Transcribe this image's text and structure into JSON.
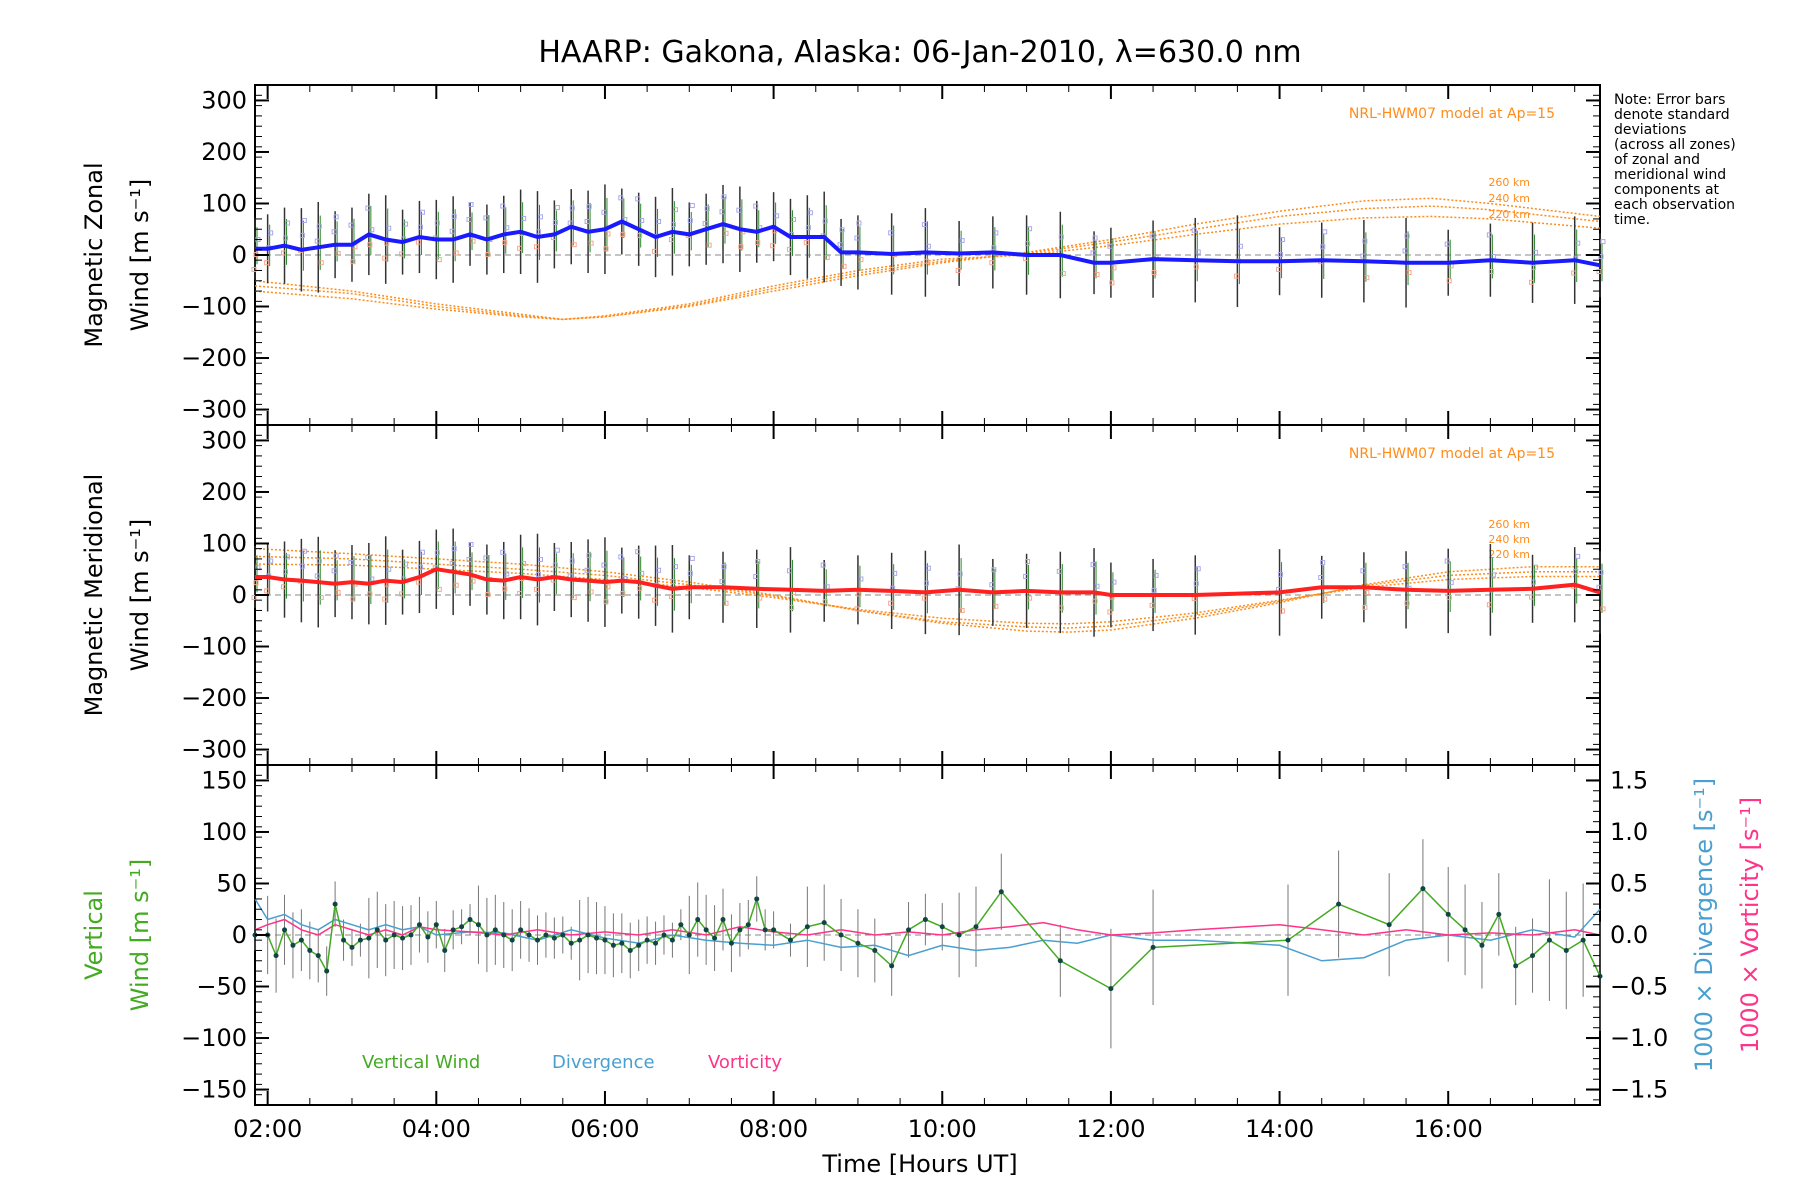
{
  "title": "HAARP: Gakona,  Alaska: 06-Jan-2010, λ=630.0 nm",
  "note": [
    "Note: Error bars",
    "denote standard",
    "deviations",
    "(across all zones)",
    "of zonal and",
    "meridional wind",
    "components at",
    "each observation",
    "time."
  ],
  "xlabel": "Time [Hours UT]",
  "x_ticks": [
    "02:00",
    "04:00",
    "06:00",
    "08:00",
    "10:00",
    "12:00",
    "14:00",
    "16:00"
  ],
  "panel_zonal": {
    "ylabel_top": "Magnetic Zonal",
    "ylabel_bottom": "Wind [m s⁻¹]",
    "y_ticks": [
      "300",
      "200",
      "100",
      "0",
      "−100",
      "−200",
      "−300"
    ],
    "model_note": "NRL-HWM07 model at Ap=15",
    "model_alt_labels": [
      "260 km",
      "240 km",
      "220 km"
    ]
  },
  "panel_meridional": {
    "ylabel_top": "Magnetic Meridional",
    "ylabel_bottom": "Wind [m s⁻¹]",
    "y_ticks": [
      "300",
      "200",
      "100",
      "0",
      "−100",
      "−200",
      "−300"
    ],
    "model_note": "NRL-HWM07 model at Ap=15",
    "model_alt_labels": [
      "260 km",
      "240 km",
      "220 km"
    ]
  },
  "panel_vertical": {
    "ylabel_top": "Vertical",
    "ylabel_bottom": "Wind [m s⁻¹]",
    "y_ticks": [
      "150",
      "100",
      "50",
      "0",
      "−50",
      "−100",
      "−150"
    ],
    "y2_ticks": [
      "1.5",
      "1.0",
      "0.5",
      "0.0",
      "−0.5",
      "−1.0",
      "−1.5"
    ],
    "y2_label_div": "1000 × Divergence [s⁻¹]",
    "y2_label_vort": "1000 × Vorticity [s⁻¹]",
    "legend": [
      "Vertical Wind",
      "Divergence",
      "Vorticity"
    ]
  },
  "colors": {
    "zonal": "#1a1aff",
    "meridional": "#ff2020",
    "model": "#ff8c1a",
    "vertical": "#44aa22",
    "divergence": "#4a9fd0",
    "vorticity": "#ff3388",
    "scatter": "#a9a9e8",
    "scatter_low": "#f5a78f"
  },
  "chart_data": [
    {
      "type": "line",
      "title": "Magnetic Zonal Wind",
      "ylim": [
        -330,
        330
      ],
      "xlim": [
        1.85,
        17.8
      ],
      "series": [
        {
          "x": [
            1.85,
            2.0,
            2.2,
            2.4,
            2.6,
            2.8,
            3.0,
            3.2,
            3.4,
            3.6,
            3.8,
            4.0,
            4.2,
            4.4,
            4.6,
            4.8,
            5.0,
            5.2,
            5.4,
            5.6,
            5.8,
            6.0,
            6.2,
            6.4,
            6.6,
            6.8,
            7.0,
            7.2,
            7.4,
            7.6,
            7.8,
            8.0,
            8.2,
            8.4,
            8.6,
            8.8,
            9.0,
            9.4,
            9.8,
            10.2,
            10.6,
            11.0,
            11.4,
            11.8,
            12.0,
            12.5,
            13.0,
            13.5,
            14.0,
            14.5,
            15.0,
            15.5,
            16.0,
            16.5,
            17.0,
            17.5,
            17.8
          ],
          "y": [
            12,
            12,
            18,
            10,
            15,
            20,
            20,
            40,
            30,
            25,
            35,
            30,
            30,
            40,
            30,
            40,
            45,
            35,
            40,
            55,
            45,
            50,
            65,
            50,
            35,
            45,
            40,
            50,
            60,
            50,
            45,
            55,
            35,
            35,
            35,
            5,
            5,
            2,
            5,
            3,
            5,
            0,
            0,
            -15,
            -15,
            -8,
            -10,
            -12,
            -12,
            -10,
            -12,
            -15,
            -15,
            -10,
            -15,
            -10,
            -20
          ],
          "color_key": "zonal"
        },
        {
          "x": [
            1.85,
            3.0,
            4.0,
            5.0,
            5.5,
            6.0,
            7.0,
            8.0,
            9.0,
            10.0,
            11.0,
            12.0,
            13.0,
            14.0,
            15.0,
            15.8,
            16.5,
            17.8
          ],
          "y": [
            -50,
            -70,
            -95,
            -115,
            -125,
            -120,
            -100,
            -70,
            -40,
            -15,
            5,
            30,
            60,
            85,
            105,
            110,
            100,
            75
          ],
          "name": "260 km",
          "color_key": "model"
        },
        {
          "x": [
            1.85,
            3.0,
            4.0,
            5.0,
            5.5,
            6.0,
            7.0,
            8.0,
            9.0,
            10.0,
            11.0,
            12.0,
            13.0,
            14.0,
            15.0,
            15.8,
            16.5,
            17.8
          ],
          "y": [
            -60,
            -75,
            -100,
            -118,
            -125,
            -120,
            -98,
            -65,
            -35,
            -12,
            3,
            25,
            50,
            75,
            90,
            95,
            88,
            65
          ],
          "name": "240 km",
          "color_key": "model"
        },
        {
          "x": [
            1.85,
            3.0,
            4.0,
            5.0,
            5.5,
            6.0,
            7.0,
            8.0,
            9.0,
            10.0,
            11.0,
            12.0,
            13.0,
            14.0,
            15.0,
            15.8,
            16.5,
            17.8
          ],
          "y": [
            -70,
            -85,
            -105,
            -120,
            -125,
            -118,
            -95,
            -60,
            -30,
            -8,
            0,
            18,
            40,
            60,
            72,
            75,
            70,
            52
          ],
          "name": "220 km",
          "color_key": "model"
        }
      ]
    },
    {
      "type": "line",
      "title": "Magnetic Meridional Wind",
      "ylim": [
        -330,
        330
      ],
      "xlim": [
        1.85,
        17.8
      ],
      "series": [
        {
          "x": [
            1.85,
            2.0,
            2.2,
            2.4,
            2.6,
            2.8,
            3.0,
            3.2,
            3.4,
            3.6,
            3.8,
            4.0,
            4.2,
            4.4,
            4.6,
            4.8,
            5.0,
            5.2,
            5.4,
            5.6,
            5.8,
            6.0,
            6.2,
            6.4,
            6.6,
            6.8,
            7.0,
            7.4,
            7.8,
            8.2,
            8.6,
            9.0,
            9.4,
            9.8,
            10.2,
            10.6,
            11.0,
            11.4,
            11.8,
            12.0,
            12.5,
            13.0,
            14.0,
            14.5,
            15.0,
            15.5,
            16.0,
            16.5,
            17.0,
            17.5,
            17.8
          ],
          "y": [
            35,
            35,
            30,
            28,
            25,
            22,
            25,
            22,
            28,
            25,
            35,
            50,
            45,
            40,
            30,
            28,
            35,
            30,
            35,
            30,
            28,
            25,
            28,
            25,
            18,
            12,
            15,
            15,
            12,
            10,
            8,
            10,
            8,
            5,
            10,
            5,
            8,
            5,
            5,
            0,
            0,
            0,
            5,
            15,
            15,
            10,
            8,
            10,
            12,
            20,
            5
          ],
          "color_key": "meridional"
        },
        {
          "x": [
            1.85,
            3.0,
            4.0,
            5.0,
            6.0,
            7.0,
            8.0,
            9.0,
            10.0,
            11.0,
            11.5,
            12.0,
            13.0,
            14.0,
            15.0,
            16.0,
            17.0,
            17.8
          ],
          "y": [
            90,
            80,
            70,
            60,
            45,
            25,
            0,
            -30,
            -55,
            -70,
            -72,
            -68,
            -45,
            -15,
            20,
            45,
            55,
            55
          ],
          "name": "260 km",
          "color_key": "model"
        },
        {
          "x": [
            1.85,
            3.0,
            4.0,
            5.0,
            6.0,
            7.0,
            8.0,
            9.0,
            10.0,
            11.0,
            11.5,
            12.0,
            13.0,
            14.0,
            15.0,
            16.0,
            17.0,
            17.8
          ],
          "y": [
            75,
            70,
            60,
            50,
            38,
            20,
            -2,
            -30,
            -52,
            -62,
            -64,
            -60,
            -40,
            -12,
            18,
            38,
            45,
            45
          ],
          "name": "240 km",
          "color_key": "model"
        },
        {
          "x": [
            1.85,
            3.0,
            4.0,
            5.0,
            6.0,
            7.0,
            8.0,
            9.0,
            10.0,
            11.0,
            11.5,
            12.0,
            13.0,
            14.0,
            15.0,
            16.0,
            17.0,
            17.8
          ],
          "y": [
            60,
            58,
            50,
            42,
            30,
            15,
            -5,
            -28,
            -45,
            -55,
            -56,
            -52,
            -35,
            -10,
            15,
            30,
            36,
            36
          ],
          "name": "220 km",
          "color_key": "model"
        }
      ]
    },
    {
      "type": "line",
      "title": "Vertical Wind / Divergence / Vorticity",
      "ylim": [
        -165,
        165
      ],
      "y2lim": [
        -1.65,
        1.65
      ],
      "xlim": [
        1.85,
        17.8
      ],
      "series": [
        {
          "name": "Vertical Wind",
          "axis": "left",
          "color_key": "vertical",
          "x": [
            1.85,
            2.0,
            2.1,
            2.2,
            2.3,
            2.4,
            2.5,
            2.6,
            2.7,
            2.8,
            2.9,
            3.0,
            3.1,
            3.2,
            3.3,
            3.4,
            3.5,
            3.6,
            3.7,
            3.8,
            3.9,
            4.0,
            4.1,
            4.2,
            4.3,
            4.4,
            4.5,
            4.6,
            4.7,
            4.8,
            4.9,
            5.0,
            5.1,
            5.2,
            5.3,
            5.4,
            5.5,
            5.6,
            5.7,
            5.8,
            5.9,
            6.0,
            6.1,
            6.2,
            6.3,
            6.4,
            6.5,
            6.6,
            6.7,
            6.8,
            6.9,
            7.0,
            7.1,
            7.2,
            7.3,
            7.4,
            7.5,
            7.6,
            7.7,
            7.8,
            7.9,
            8.0,
            8.2,
            8.4,
            8.6,
            8.8,
            9.0,
            9.2,
            9.4,
            9.6,
            9.8,
            10.0,
            10.2,
            10.4,
            10.7,
            11.4,
            12.0,
            12.5,
            14.1,
            14.7,
            15.3,
            15.7,
            16.0,
            16.2,
            16.4,
            16.6,
            16.8,
            17.0,
            17.2,
            17.4,
            17.6,
            17.8
          ],
          "y": [
            0,
            0,
            -20,
            5,
            -10,
            -5,
            -15,
            -20,
            -35,
            30,
            -5,
            -12,
            -5,
            -3,
            5,
            -5,
            0,
            -3,
            0,
            10,
            -2,
            10,
            -15,
            5,
            8,
            15,
            10,
            0,
            5,
            0,
            -5,
            5,
            0,
            -5,
            0,
            -3,
            0,
            -8,
            -5,
            0,
            -3,
            -5,
            -10,
            -8,
            -15,
            -10,
            -5,
            -8,
            0,
            -5,
            10,
            0,
            15,
            5,
            -3,
            15,
            -8,
            5,
            10,
            35,
            5,
            5,
            -5,
            8,
            12,
            0,
            -8,
            -15,
            -30,
            5,
            15,
            8,
            0,
            8,
            42,
            -25,
            -52,
            -12,
            -5,
            30,
            10,
            45,
            20,
            5,
            -10,
            20,
            -30,
            -20,
            -5,
            -15,
            -5,
            -40
          ]
        },
        {
          "name": "Divergence",
          "axis": "right",
          "color_key": "divergence",
          "x": [
            1.85,
            2.0,
            2.2,
            2.4,
            2.6,
            2.8,
            3.0,
            3.2,
            3.4,
            3.6,
            3.8,
            4.0,
            4.4,
            4.8,
            5.2,
            5.6,
            6.0,
            6.4,
            6.8,
            7.2,
            7.6,
            8.0,
            8.4,
            8.8,
            9.2,
            9.6,
            10.0,
            10.4,
            10.8,
            11.2,
            11.6,
            12.0,
            12.5,
            13.0,
            14.0,
            14.5,
            15.0,
            15.5,
            16.0,
            16.5,
            17.0,
            17.5,
            17.8
          ],
          "y": [
            0.35,
            0.15,
            0.2,
            0.1,
            0.05,
            0.15,
            0.1,
            0.05,
            0.1,
            0.05,
            0.08,
            0.0,
            0.03,
            0.02,
            -0.05,
            0.05,
            -0.03,
            -0.08,
            0.0,
            -0.05,
            -0.08,
            -0.1,
            -0.05,
            -0.12,
            -0.1,
            -0.2,
            -0.1,
            -0.15,
            -0.12,
            -0.05,
            -0.08,
            0.0,
            -0.05,
            -0.05,
            -0.1,
            -0.25,
            -0.22,
            -0.05,
            0.0,
            -0.05,
            0.05,
            -0.02,
            0.25
          ]
        },
        {
          "name": "Vorticity",
          "axis": "right",
          "color_key": "vorticity",
          "x": [
            1.85,
            2.0,
            2.2,
            2.4,
            2.6,
            2.8,
            3.0,
            3.2,
            3.4,
            3.6,
            3.8,
            4.0,
            4.4,
            4.8,
            5.2,
            5.6,
            6.0,
            6.4,
            6.8,
            7.2,
            7.6,
            8.0,
            8.4,
            8.8,
            9.2,
            9.6,
            10.0,
            10.4,
            10.8,
            11.2,
            11.6,
            12.0,
            12.5,
            13.0,
            14.0,
            14.5,
            15.0,
            15.5,
            16.0,
            16.5,
            17.0,
            17.5,
            17.8
          ],
          "y": [
            0.05,
            0.1,
            0.15,
            0.05,
            0.0,
            0.1,
            0.05,
            0.0,
            0.05,
            0.0,
            0.08,
            0.05,
            0.03,
            0.0,
            0.05,
            0.0,
            0.03,
            0.0,
            0.05,
            0.0,
            0.08,
            0.03,
            0.0,
            0.05,
            0.0,
            0.03,
            0.0,
            0.05,
            0.08,
            0.12,
            0.05,
            0.0,
            0.02,
            0.05,
            0.1,
            0.05,
            0.0,
            0.05,
            0.0,
            0.02,
            0.0,
            0.05,
            0.0
          ]
        }
      ]
    }
  ]
}
